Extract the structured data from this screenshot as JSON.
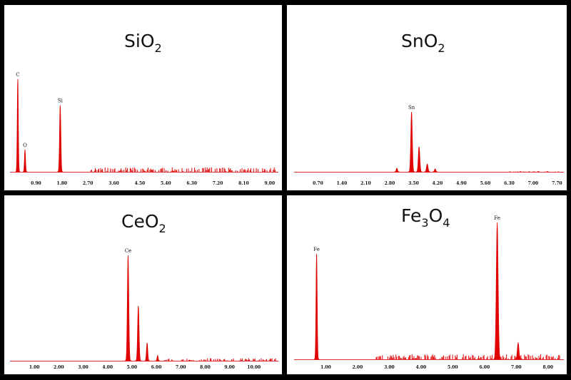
{
  "colors": {
    "spectrum": "#e00000",
    "axis": "#d83030",
    "text": "#111111",
    "frame": "#000000"
  },
  "chart_data": [
    {
      "type": "spectrum",
      "title": {
        "base": "SiO",
        "sub": "2",
        "tail": ""
      },
      "x_ticks": [
        "0.90",
        "1.80",
        "2.70",
        "3.60",
        "4.50",
        "5.40",
        "6.30",
        "7.20",
        "8.10",
        "9.00"
      ],
      "x_tick_values": [
        0.9,
        1.8,
        2.7,
        3.6,
        4.5,
        5.4,
        6.3,
        7.2,
        8.1,
        9.0
      ],
      "xlim": [
        0.0,
        9.3
      ],
      "peaks": [
        {
          "x": 0.27,
          "h": 1.0,
          "w": 0.05,
          "label": "C"
        },
        {
          "x": 0.52,
          "h": 0.24,
          "w": 0.05,
          "label": "O"
        },
        {
          "x": 1.74,
          "h": 0.72,
          "w": 0.06,
          "label": "Si"
        }
      ],
      "noise": {
        "from": 2.8,
        "to": 9.2,
        "level": 0.04,
        "seed": 11
      }
    },
    {
      "type": "spectrum",
      "title": {
        "base": "SnO",
        "sub": "2",
        "tail": ""
      },
      "x_ticks": [
        "0.70",
        "1.40",
        "2.10",
        "2.80",
        "3.50",
        "4.20",
        "4.90",
        "5.60",
        "6.30",
        "7.00",
        "7.70"
      ],
      "x_tick_values": [
        0.7,
        1.4,
        2.1,
        2.8,
        3.5,
        4.2,
        4.9,
        5.6,
        6.3,
        7.0,
        7.7
      ],
      "xlim": [
        0.0,
        7.9
      ],
      "peaks": [
        {
          "x": 3.01,
          "h": 0.06,
          "w": 0.05,
          "label": ""
        },
        {
          "x": 3.44,
          "h": 1.0,
          "w": 0.06,
          "label": "Sn"
        },
        {
          "x": 3.66,
          "h": 0.42,
          "w": 0.06,
          "label": ""
        },
        {
          "x": 3.9,
          "h": 0.13,
          "w": 0.06,
          "label": ""
        },
        {
          "x": 4.13,
          "h": 0.05,
          "w": 0.05,
          "label": ""
        }
      ],
      "noise": {
        "from": 6.3,
        "to": 7.8,
        "level": 0.01,
        "seed": 23
      }
    },
    {
      "type": "spectrum",
      "title": {
        "base": "CeO",
        "sub": "2",
        "tail": ""
      },
      "x_ticks": [
        "1.00",
        "2.00",
        "3.00",
        "4.00",
        "5.00",
        "6.00",
        "7.00",
        "8.00",
        "9.00",
        "10.00"
      ],
      "x_tick_values": [
        1.0,
        2.0,
        3.0,
        4.0,
        5.0,
        6.0,
        7.0,
        8.0,
        9.0,
        10.0
      ],
      "xlim": [
        0.0,
        11.0
      ],
      "peaks": [
        {
          "x": 4.84,
          "h": 1.0,
          "w": 0.08,
          "label": "Ce"
        },
        {
          "x": 5.26,
          "h": 0.52,
          "w": 0.08,
          "label": ""
        },
        {
          "x": 5.62,
          "h": 0.17,
          "w": 0.07,
          "label": ""
        },
        {
          "x": 6.05,
          "h": 0.05,
          "w": 0.06,
          "label": ""
        }
      ],
      "noise": {
        "from": 6.3,
        "to": 10.9,
        "level": 0.02,
        "seed": 37
      }
    },
    {
      "type": "spectrum",
      "title": {
        "base": "Fe",
        "sub": "3",
        "tail": "O",
        "sub2": "4"
      },
      "x_ticks": [
        "1.00",
        "2.00",
        "3.00",
        "4.00",
        "5.00",
        "6.00",
        "7.00",
        "8.00"
      ],
      "x_tick_values": [
        1.0,
        2.0,
        3.0,
        4.0,
        5.0,
        6.0,
        7.0,
        8.0
      ],
      "xlim": [
        0.0,
        8.5
      ],
      "peaks": [
        {
          "x": 0.71,
          "h": 0.77,
          "w": 0.05,
          "label": "Fe"
        },
        {
          "x": 6.4,
          "h": 1.0,
          "w": 0.08,
          "label": "Fe"
        },
        {
          "x": 7.06,
          "h": 0.12,
          "w": 0.07,
          "label": ""
        }
      ],
      "noise": {
        "from": 2.5,
        "to": 8.4,
        "level": 0.03,
        "seed": 51
      }
    }
  ]
}
